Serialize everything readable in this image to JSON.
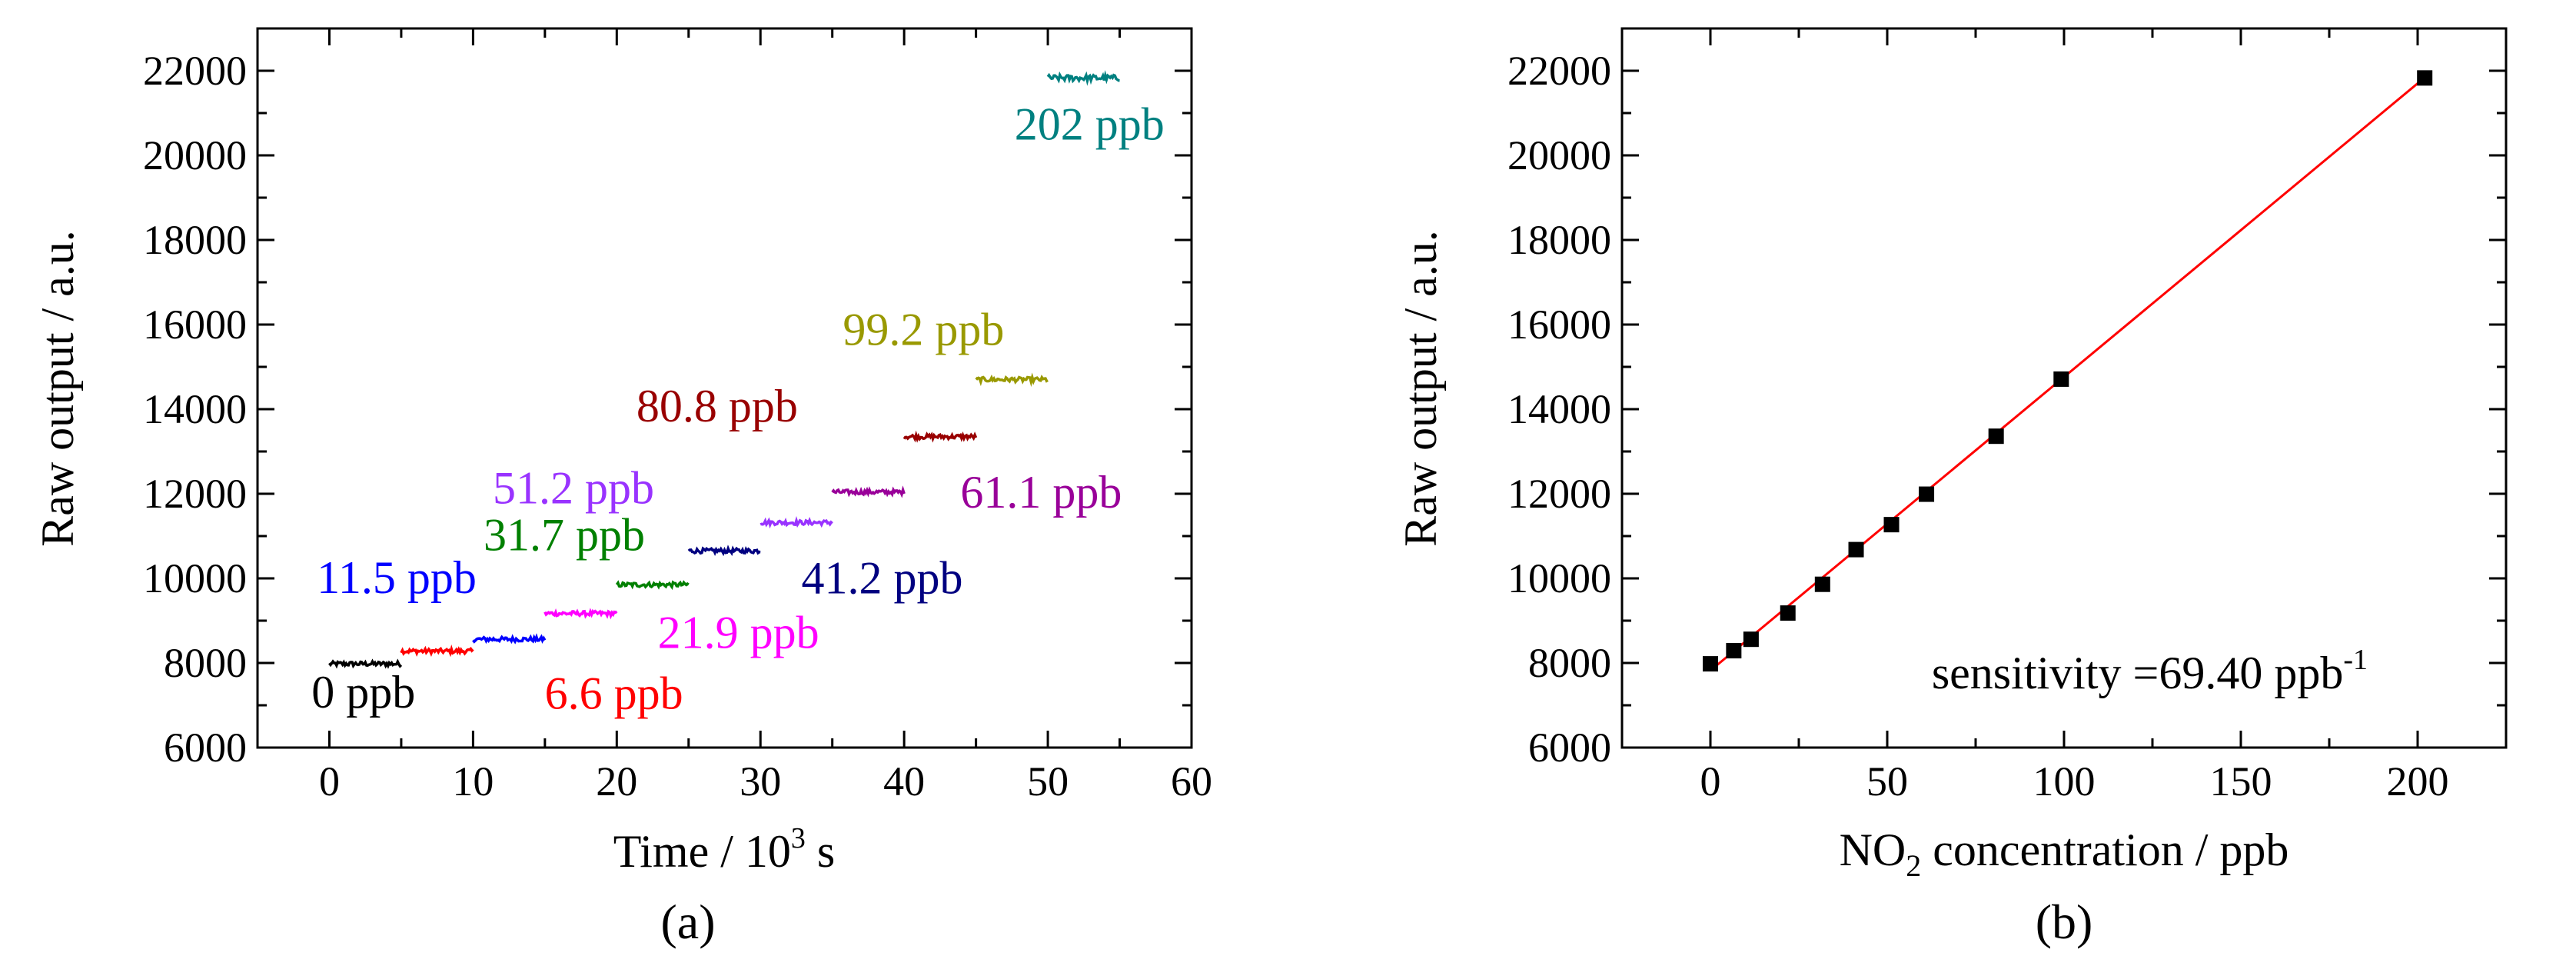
{
  "chart_data": [
    {
      "type": "line",
      "panel_label": "(a)",
      "xlabel_parts": {
        "main": "Time / 10",
        "sup": "3",
        "tail": " s"
      },
      "ylabel": "Raw output / a.u.",
      "xlim": [
        -5,
        60
      ],
      "ylim": [
        6000,
        23000
      ],
      "xticks": [
        0,
        10,
        20,
        30,
        40,
        50,
        60
      ],
      "yticks": [
        6000,
        8000,
        10000,
        12000,
        14000,
        16000,
        18000,
        20000,
        22000
      ],
      "series": [
        {
          "name": "0 ppb",
          "label": "0 ppb",
          "color": "#000000",
          "x_start": 0,
          "x_end": 5,
          "level": 7980
        },
        {
          "name": "6.6 ppb",
          "label": "6.6 ppb",
          "color": "#ff0000",
          "x_start": 5,
          "x_end": 10,
          "level": 8280
        },
        {
          "name": "11.5 ppb",
          "label": "11.5 ppb",
          "color": "#0000ff",
          "x_start": 10,
          "x_end": 15,
          "level": 8560
        },
        {
          "name": "21.9 ppb",
          "label": "21.9 ppb",
          "color": "#ff00ff",
          "x_start": 15,
          "x_end": 20,
          "level": 9170
        },
        {
          "name": "31.7 ppb",
          "label": "31.7 ppb",
          "color": "#008000",
          "x_start": 20,
          "x_end": 25,
          "level": 9850
        },
        {
          "name": "41.2 ppb",
          "label": "41.2 ppb",
          "color": "#000080",
          "x_start": 25,
          "x_end": 30,
          "level": 10650
        },
        {
          "name": "51.2 ppb",
          "label": "51.2 ppb",
          "color": "#9933ff",
          "x_start": 30,
          "x_end": 35,
          "level": 11320
        },
        {
          "name": "61.1 ppb",
          "label": "61.1 ppb",
          "color": "#990099",
          "x_start": 35,
          "x_end": 40,
          "level": 12040
        },
        {
          "name": "80.8 ppb",
          "label": "80.8 ppb",
          "color": "#990000",
          "x_start": 40,
          "x_end": 45,
          "level": 13350
        },
        {
          "name": "99.2 ppb",
          "label": "99.2 ppb",
          "color": "#999900",
          "x_start": 45,
          "x_end": 50,
          "level": 14700
        },
        {
          "name": "202 ppb",
          "label": "202 ppb",
          "color": "#008080",
          "x_start": 50,
          "x_end": 55,
          "level": 21830
        }
      ]
    },
    {
      "type": "scatter",
      "panel_label": "(b)",
      "xlabel_parts": {
        "pre": "NO",
        "sub": "2",
        "post": " concentration / ppb"
      },
      "ylabel": "Raw output / a.u.",
      "xlim": [
        -25,
        225
      ],
      "ylim": [
        6000,
        23000
      ],
      "xticks": [
        0,
        50,
        100,
        150,
        200
      ],
      "yticks": [
        6000,
        8000,
        10000,
        12000,
        14000,
        16000,
        18000,
        20000,
        22000
      ],
      "points": [
        {
          "x": 0,
          "y": 7980
        },
        {
          "x": 6.6,
          "y": 8290
        },
        {
          "x": 11.5,
          "y": 8560
        },
        {
          "x": 21.9,
          "y": 9180
        },
        {
          "x": 31.7,
          "y": 9860
        },
        {
          "x": 41.2,
          "y": 10680
        },
        {
          "x": 51.2,
          "y": 11270
        },
        {
          "x": 61.1,
          "y": 11990
        },
        {
          "x": 80.8,
          "y": 13360
        },
        {
          "x": 99.2,
          "y": 14710
        },
        {
          "x": 202,
          "y": 21830
        }
      ],
      "fit_line": {
        "x": [
          0,
          202
        ],
        "y": [
          7820,
          21840
        ],
        "color": "#ff0000"
      },
      "annotation": {
        "main": "sensitivity =69.40 ppb",
        "sup": "-1"
      }
    }
  ]
}
